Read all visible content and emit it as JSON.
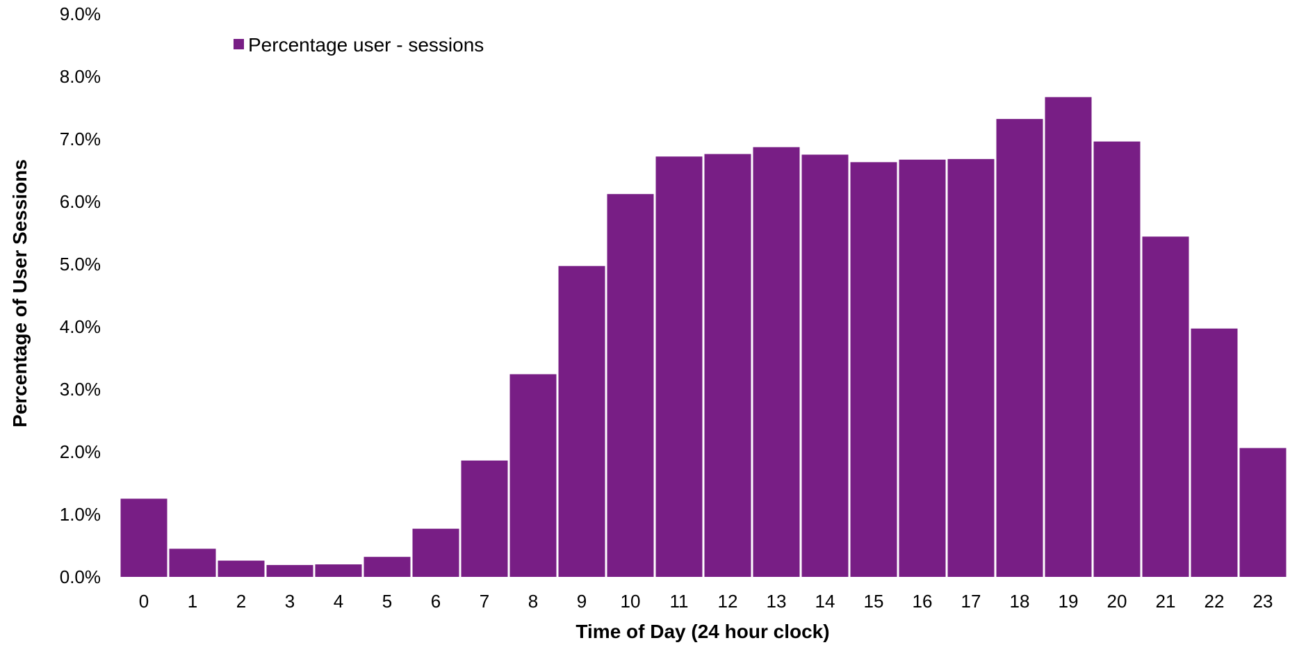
{
  "chart_data": {
    "type": "bar",
    "title": "",
    "xlabel": "Time of Day (24 hour clock)",
    "ylabel": "Percentage  of User Sessions",
    "ylim": [
      0,
      9
    ],
    "y_tick_values": [
      0,
      1,
      2,
      3,
      4,
      5,
      6,
      7,
      8,
      9
    ],
    "y_tick_labels": [
      "0.0%",
      "1.0%",
      "2.0%",
      "3.0%",
      "4.0%",
      "5.0%",
      "6.0%",
      "7.0%",
      "8.0%",
      "9.0%"
    ],
    "categories": [
      "0",
      "1",
      "2",
      "3",
      "4",
      "5",
      "6",
      "7",
      "8",
      "9",
      "10",
      "11",
      "12",
      "13",
      "14",
      "15",
      "16",
      "17",
      "18",
      "19",
      "20",
      "21",
      "22",
      "23"
    ],
    "series": [
      {
        "name": "Percentage user - sessions",
        "color": "#781E85",
        "values": [
          1.25,
          0.45,
          0.26,
          0.19,
          0.2,
          0.32,
          0.77,
          1.86,
          3.24,
          4.97,
          6.12,
          6.72,
          6.76,
          6.87,
          6.75,
          6.63,
          6.67,
          6.68,
          7.32,
          7.67,
          6.96,
          5.44,
          3.97,
          2.06
        ]
      }
    ],
    "grid": false,
    "legend_position": "top-left"
  }
}
